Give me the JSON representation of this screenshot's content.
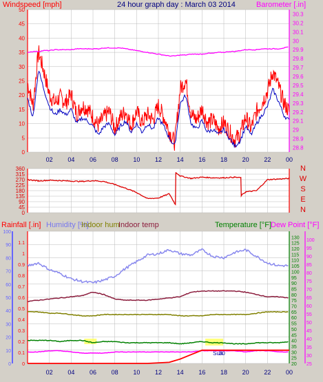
{
  "title": "24 hour graph day : March 03 2014",
  "colors": {
    "bg": "#d4d0c8",
    "plotbg": "#ffffff",
    "grid": "#b8b8b8",
    "wind": "#ff0000",
    "windavg": "#0000c0",
    "baro": "#ff00ff",
    "dir": "#dd0000",
    "humidity": "#8888ee",
    "indoor_hum": "#808000",
    "indoor_temp": "#8b1c3c",
    "temperature": "#008000",
    "dewpoint": "#ff00ff",
    "rain": "#ff0000",
    "sun": "#ffff44",
    "title": "#000080",
    "left_axis_rain": "#ff0000",
    "left_axis_hum": "#6666ff",
    "right_axis_temp": "#008000",
    "right_axis_dew": "#ff00ff"
  },
  "x_ticks": [
    "02",
    "04",
    "06",
    "08",
    "10",
    "12",
    "14",
    "16",
    "18",
    "20",
    "22",
    "00"
  ],
  "chart_data": [
    {
      "type": "line",
      "title": "24 hour graph day : March 03 2014",
      "ylabel": "Windspeed [mph]",
      "y2label": "Barometer [.in]",
      "ylim": [
        0,
        50
      ],
      "y_ticks": [
        "0",
        "5",
        "10",
        "15",
        "20",
        "25",
        "30",
        "35",
        "40",
        "45",
        "50"
      ],
      "y2lim": [
        28.75,
        30.35
      ],
      "y2_ticks": [
        "28.8",
        "28.9",
        "29",
        "29.1",
        "29.2",
        "29.3",
        "29.4",
        "29.5",
        "29.6",
        "29.7",
        "29.8",
        "29.9",
        "30",
        "30.1",
        "30.2",
        "30.3"
      ],
      "x_hours": [
        0,
        0.5,
        1,
        1.5,
        2,
        2.5,
        3,
        3.5,
        4,
        4.5,
        5,
        5.5,
        6,
        6.5,
        7,
        7.5,
        8,
        8.5,
        9,
        9.5,
        10,
        10.5,
        11,
        11.5,
        12,
        12.5,
        13,
        13.5,
        14,
        14.5,
        15,
        15.5,
        16,
        16.5,
        17,
        17.5,
        18,
        18.5,
        19,
        19.5,
        20,
        20.5,
        21,
        21.5,
        22,
        22.5,
        23,
        23.5,
        24
      ],
      "series": [
        {
          "name": "Windspeed",
          "role": "gust",
          "values": [
            24,
            16,
            35,
            28,
            20,
            17,
            19,
            17,
            20,
            13,
            16,
            15,
            12,
            9,
            12,
            14,
            8,
            12,
            14,
            9,
            14,
            10,
            13,
            11,
            16,
            12,
            7,
            3,
            22,
            25,
            13,
            11,
            15,
            10,
            11,
            8,
            10,
            7,
            4,
            6,
            12,
            8,
            14,
            17,
            21,
            28,
            23,
            17,
            14
          ]
        },
        {
          "name": "Windspeed average",
          "role": "average",
          "values": [
            19,
            12,
            29,
            22,
            16,
            13,
            15,
            13,
            15,
            10,
            12,
            11,
            9,
            6,
            9,
            10,
            6,
            9,
            11,
            7,
            10,
            7,
            10,
            8,
            12,
            9,
            5,
            2,
            17,
            20,
            10,
            8,
            11,
            7,
            8,
            6,
            8,
            5,
            2,
            4,
            9,
            6,
            10,
            13,
            16,
            22,
            18,
            13,
            11
          ]
        },
        {
          "name": "Barometer",
          "axis": "y2",
          "values": [
            29.87,
            29.88,
            29.88,
            29.89,
            29.89,
            29.9,
            29.9,
            29.9,
            29.9,
            29.91,
            29.91,
            29.91,
            29.91,
            29.91,
            29.92,
            29.92,
            29.92,
            29.92,
            29.91,
            29.9,
            29.89,
            29.88,
            29.87,
            29.86,
            29.85,
            29.84,
            29.83,
            29.83,
            29.84,
            29.84,
            29.85,
            29.85,
            29.85,
            29.86,
            29.86,
            29.87,
            29.87,
            29.88,
            29.88,
            29.89,
            29.9,
            29.9,
            29.9,
            29.91,
            29.91,
            29.91,
            29.91,
            29.92,
            29.93
          ]
        }
      ]
    },
    {
      "type": "line",
      "ylim": [
        0,
        360
      ],
      "y_ticks": [
        "0",
        "45",
        "90",
        "135",
        "180",
        "225",
        "270",
        "315",
        "360"
      ],
      "compass": [
        "N",
        "W",
        "S",
        "E",
        "N"
      ],
      "x_hours": [
        0,
        1,
        2,
        3,
        4,
        5,
        6,
        7,
        8,
        9,
        10,
        11,
        12,
        13,
        13.6,
        13.6,
        14,
        15,
        16,
        17,
        18,
        19,
        19.6,
        19.6,
        20,
        21,
        22,
        23,
        24
      ],
      "series": [
        {
          "name": "Wind direction",
          "values": [
            270,
            260,
            265,
            262,
            258,
            255,
            262,
            255,
            230,
            200,
            165,
            115,
            120,
            155,
            60,
            330,
            300,
            280,
            290,
            285,
            285,
            290,
            285,
            140,
            170,
            180,
            270,
            275,
            280
          ]
        }
      ]
    },
    {
      "type": "line",
      "series_labels": [
        "Rainfall [.in]",
        "Humidity [%]",
        "Indoor hum",
        "Indoor temp",
        "Temperature [°F]",
        "Dew Point [°F]"
      ],
      "rain_ylim": [
        0,
        1.2
      ],
      "rain_ticks": [
        "0",
        "0.1",
        "0.2",
        "0.3",
        "0.4",
        "0.5",
        "0.6",
        "0.7",
        "0.8",
        "0.9",
        "1",
        "1.1"
      ],
      "hum_ylim": [
        0,
        100
      ],
      "hum_ticks": [
        "0",
        "10",
        "20",
        "30",
        "40",
        "50",
        "60",
        "70",
        "80",
        "90",
        "100"
      ],
      "temp_ylim": [
        20,
        135
      ],
      "temp_ticks": [
        "20",
        "25",
        "30",
        "35",
        "40",
        "45",
        "50",
        "55",
        "60",
        "65",
        "70",
        "75",
        "80",
        "85",
        "90",
        "95",
        "100",
        "105",
        "110",
        "115",
        "120",
        "125",
        "130"
      ],
      "dew_ylim": [
        25,
        105
      ],
      "dew_ticks": [
        "25",
        "30",
        "35",
        "40",
        "45",
        "50",
        "55",
        "60",
        "65",
        "70",
        "75",
        "80",
        "85",
        "90",
        "95",
        "100"
      ],
      "x_hours": [
        0,
        1,
        2,
        3,
        4,
        5,
        6,
        7,
        8,
        9,
        10,
        11,
        12,
        13,
        14,
        15,
        16,
        17,
        18,
        19,
        20,
        21,
        22,
        23,
        24
      ],
      "series": [
        {
          "name": "Humidity",
          "axis": "hum",
          "values": [
            74,
            76,
            71,
            68,
            64,
            62,
            61,
            63,
            66,
            72,
            77,
            82,
            83,
            86,
            83,
            82,
            86,
            81,
            80,
            84,
            86,
            81,
            76,
            74,
            74
          ]
        },
        {
          "name": "Indoor hum",
          "axis": "hum",
          "values": [
            39,
            39,
            38,
            38,
            37,
            36,
            36,
            37,
            37,
            37,
            37,
            37,
            37,
            37,
            36,
            36,
            36,
            37,
            37,
            37,
            37,
            38,
            39,
            39,
            39
          ]
        },
        {
          "name": "Indoor temp",
          "axis": "temp",
          "values": [
            74,
            75,
            76,
            77,
            78,
            79,
            82,
            80,
            76,
            75,
            75,
            75,
            76,
            77,
            78,
            82,
            83,
            83,
            83,
            83,
            82,
            80,
            78,
            78,
            77
          ]
        },
        {
          "name": "Temperature",
          "axis": "temp",
          "values": [
            40,
            40,
            40,
            39,
            40,
            40,
            38,
            39,
            39,
            38,
            38,
            38,
            38,
            38,
            37,
            38,
            39,
            38,
            38,
            37,
            37,
            38,
            38,
            38,
            39
          ]
        },
        {
          "name": "Dew Point",
          "axis": "temp",
          "values": [
            30,
            30,
            31,
            31,
            30,
            29,
            29,
            29,
            30,
            30,
            30,
            30,
            30,
            30,
            30,
            30,
            31,
            31,
            31,
            31,
            30,
            31,
            31,
            30,
            30
          ]
        },
        {
          "name": "Rainfall",
          "axis": "rain",
          "x_hours": [
            0,
            11,
            13,
            14,
            15,
            15.5,
            16,
            24
          ],
          "values": [
            0,
            0,
            0.01,
            0.04,
            0.08,
            0.1,
            0.12,
            0.12
          ]
        }
      ],
      "sun_marks": [
        {
          "label": "Sun",
          "hour": 17
        },
        {
          "label": "30",
          "hour": 17.3
        }
      ]
    }
  ]
}
